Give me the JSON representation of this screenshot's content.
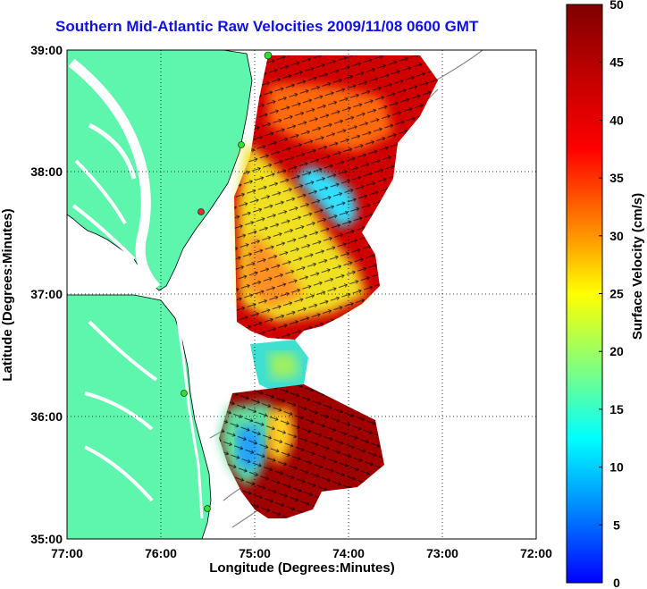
{
  "title": "Southern Mid-Atlantic Raw Velocities 2009/11/08 0600 GMT",
  "xlabel": "Longitude (Degrees:Minutes)",
  "ylabel": "Latitude (Degrees:Minutes)",
  "x_ticks": [
    "77:00",
    "76:00",
    "75:00",
    "74:00",
    "73:00",
    "72:00"
  ],
  "y_ticks": [
    "39:00",
    "38:00",
    "37:00",
    "36:00",
    "35:00"
  ],
  "colorbar": {
    "label": "Surface Velocity (cm/s)",
    "ticks": [
      "0",
      "5",
      "10",
      "15",
      "20",
      "25",
      "30",
      "35",
      "40",
      "45",
      "50"
    ],
    "min": 0,
    "max": 50,
    "colormap": "jet"
  },
  "map": {
    "lon_range": [
      -77,
      -72
    ],
    "lat_range": [
      35,
      39
    ],
    "land_color": "#5ef5ad",
    "grid": "dotted",
    "stations": [
      "station-marker",
      "station-marker",
      "station-marker",
      "station-marker",
      "station-marker"
    ]
  }
}
